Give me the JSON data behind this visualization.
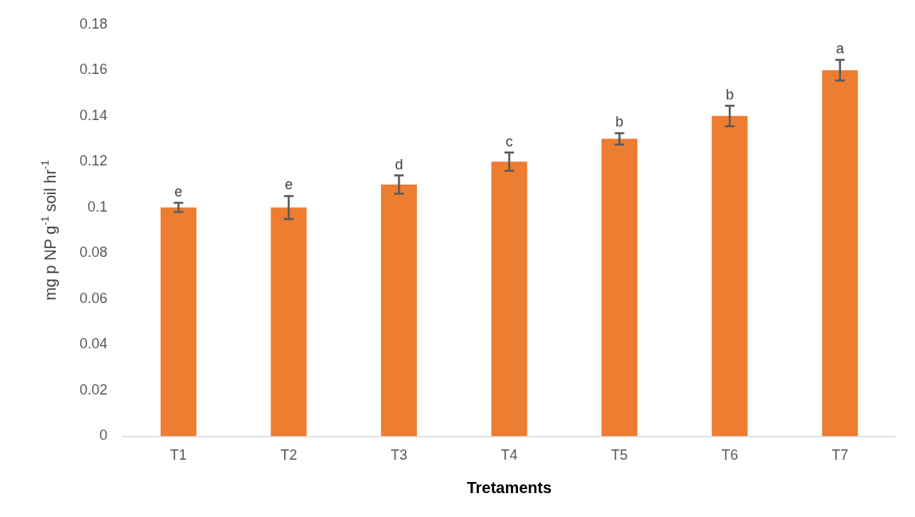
{
  "chart_data": {
    "type": "bar",
    "xlabel": "Tretaments",
    "ylabel": "mg p NP g$^{-1}$ soil hr$^{-1}$",
    "categories": [
      "T1",
      "T2",
      "T3",
      "T4",
      "T5",
      "T6",
      "T7"
    ],
    "values": [
      0.1,
      0.1,
      0.11,
      0.12,
      0.13,
      0.14,
      0.16
    ],
    "errors": [
      0.002,
      0.005,
      0.004,
      0.004,
      0.0025,
      0.0045,
      0.0045
    ],
    "color": "#ed7d31",
    "ylim": [
      0,
      0.18
    ],
    "yticks": [
      0,
      0.02,
      0.04,
      0.06,
      0.08,
      0.1,
      0.12,
      0.14,
      0.16,
      0.18
    ],
    "grid": false,
    "legend": false,
    "annotations": [
      {
        "text": "e",
        "x": "T1",
        "y": 0.102
      },
      {
        "text": "e",
        "x": "T2",
        "y": 0.105
      },
      {
        "text": "d",
        "x": "T3",
        "y": 0.114
      },
      {
        "text": "c",
        "x": "T4",
        "y": 0.124
      },
      {
        "text": "b",
        "x": "T5",
        "y": 0.1325
      },
      {
        "text": "b",
        "x": "T6",
        "y": 0.1445
      },
      {
        "text": "a",
        "x": "T7",
        "y": 0.1645
      }
    ]
  }
}
